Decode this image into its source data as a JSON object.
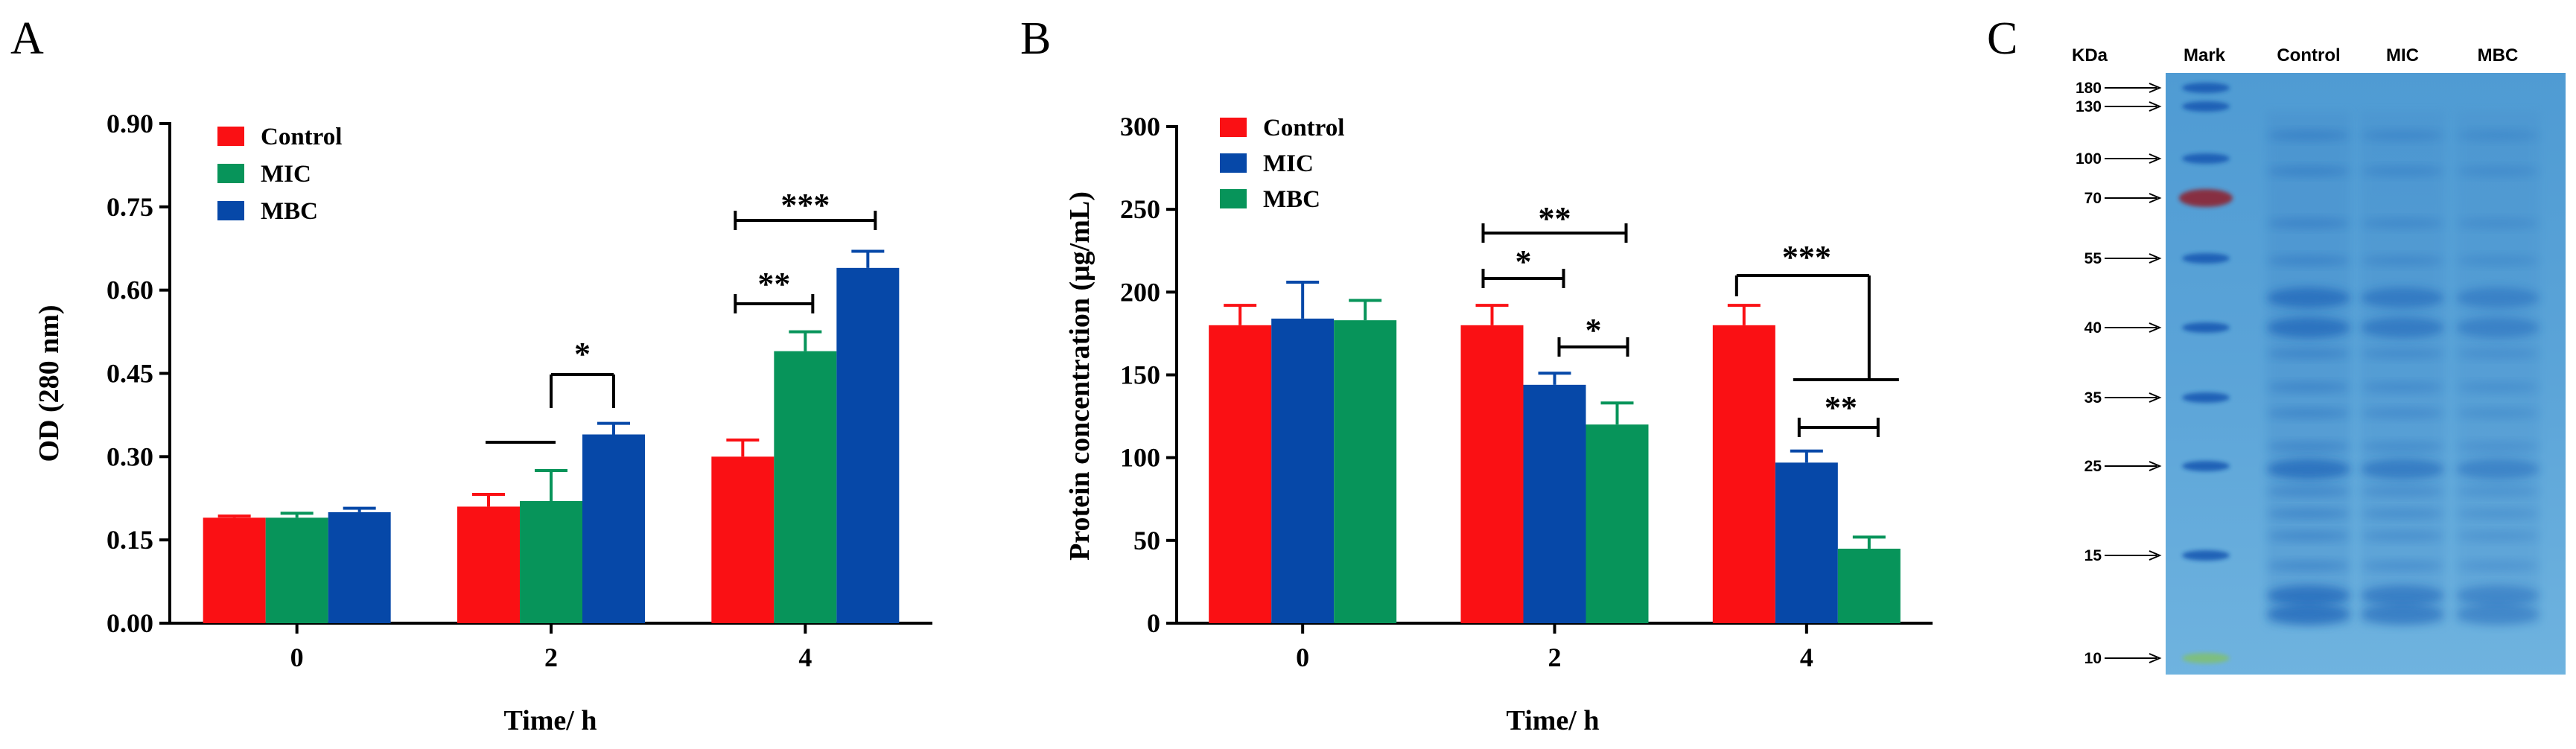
{
  "panels": {
    "a_letter": "A",
    "b_letter": "B",
    "c_letter": "C"
  },
  "colors": {
    "control": "#fa1014",
    "green": "#07945a",
    "blue": "#0648a8",
    "gel_bg": "#5aa3d6"
  },
  "chart_data": [
    {
      "type": "bar",
      "panel": "A",
      "xlabel": "Time/ h",
      "ylabel": "OD (280 nm)",
      "categories": [
        "0",
        "2",
        "4"
      ],
      "ylim": [
        0,
        0.9
      ],
      "yticks": [
        "0.00",
        "0.15",
        "0.30",
        "0.45",
        "0.60",
        "0.75",
        "0.90"
      ],
      "legend_position": "top-left",
      "series": [
        {
          "name": "Control",
          "color": "#fa1014",
          "values": [
            0.19,
            0.21,
            0.3
          ],
          "errors": [
            0.003,
            0.022,
            0.03
          ]
        },
        {
          "name": "MIC",
          "color": "#07945a",
          "values": [
            0.19,
            0.22,
            0.49
          ],
          "errors": [
            0.008,
            0.055,
            0.035
          ]
        },
        {
          "name": "MBC",
          "color": "#0648a8",
          "values": [
            0.2,
            0.34,
            0.64
          ],
          "errors": [
            0.007,
            0.02,
            0.03
          ]
        }
      ],
      "significance": [
        {
          "label": "*",
          "group": 1
        },
        {
          "label": "**",
          "group": 2
        },
        {
          "label": "***",
          "group": 2
        }
      ]
    },
    {
      "type": "bar",
      "panel": "B",
      "xlabel": "Time/ h",
      "ylabel": "Protein concentration (μg/mL)",
      "categories": [
        "0",
        "2",
        "4"
      ],
      "ylim": [
        0,
        300
      ],
      "yticks": [
        "0",
        "50",
        "100",
        "150",
        "200",
        "250",
        "300"
      ],
      "legend_position": "top-left",
      "series": [
        {
          "name": "Control",
          "color": "#fa1014",
          "values": [
            180,
            180,
            180
          ],
          "errors": [
            12,
            12,
            12
          ]
        },
        {
          "name": "MIC",
          "color": "#0648a8",
          "values": [
            184,
            144,
            97
          ],
          "errors": [
            22,
            7,
            7
          ]
        },
        {
          "name": "MBC",
          "color": "#07945a",
          "values": [
            183,
            120,
            45
          ],
          "errors": [
            12,
            13,
            7
          ]
        }
      ],
      "significance": [
        {
          "label": "**",
          "group": 1
        },
        {
          "label": "*",
          "group": 1
        },
        {
          "label": "*",
          "group": 1
        },
        {
          "label": "***",
          "group": 2
        },
        {
          "label": "**",
          "group": 2
        }
      ]
    }
  ],
  "gel": {
    "kda_label": "KDa",
    "lanes": [
      "Mark",
      "Control",
      "MIC",
      "MBC"
    ],
    "markers": [
      "180",
      "130",
      "100",
      "70",
      "55",
      "40",
      "35",
      "25",
      "15",
      "10"
    ]
  }
}
